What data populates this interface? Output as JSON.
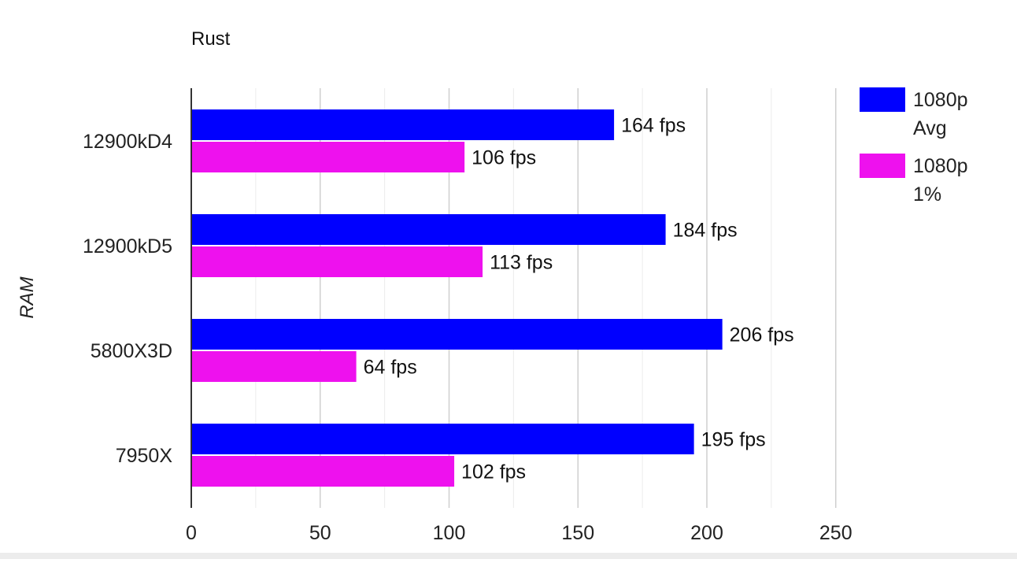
{
  "chart_data": {
    "type": "bar",
    "orientation": "horizontal",
    "title": "Rust",
    "xlabel": "",
    "ylabel": "RAM",
    "categories": [
      "12900kD4",
      "12900kD5",
      "5800X3D",
      "7950X"
    ],
    "series": [
      {
        "name": "1080p Avg",
        "color": "#0000ff",
        "values": [
          164,
          184,
          206,
          195
        ]
      },
      {
        "name": "1080p 1%",
        "color": "#ee11ee",
        "values": [
          106,
          113,
          64,
          102
        ]
      }
    ],
    "data_labels": [
      [
        "164 fps",
        "184 fps",
        "206 fps",
        "195 fps"
      ],
      [
        "106 fps",
        "113 fps",
        "64 fps",
        "102 fps"
      ]
    ],
    "xlim": [
      0,
      250
    ],
    "x_ticks": [
      0,
      50,
      100,
      150,
      200,
      250
    ],
    "x_minor_grid": [
      25,
      75,
      125,
      175,
      225
    ],
    "grid": true,
    "legend_position": "right"
  }
}
